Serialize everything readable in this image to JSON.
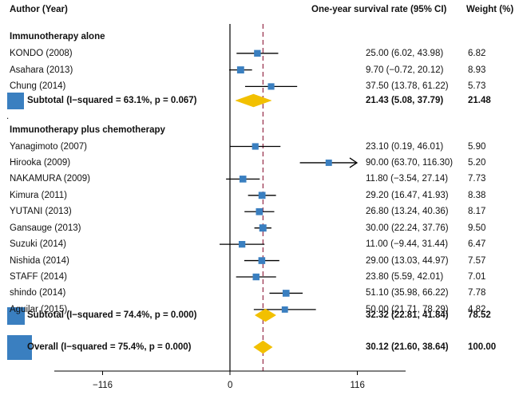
{
  "chart_data": {
    "type": "forest",
    "headers": {
      "study": "Author (Year)",
      "estimate": "One-year survival rate (95% CI)",
      "weight": "Weight (%)"
    },
    "subgroup_separator": ".",
    "subgroups": [
      {
        "title": "Immunotherapy alone",
        "studies": [
          {
            "label": "KONDO (2008)",
            "est": 25.0,
            "lo": 6.02,
            "hi": 43.98,
            "ci_text": "25.00 (6.02, 43.98)",
            "weight": 6.82,
            "weight_text": "6.82"
          },
          {
            "label": "Asahara (2013)",
            "est": 9.7,
            "lo": -0.72,
            "hi": 20.12,
            "ci_text": "9.70 (−0.72, 20.12)",
            "weight": 8.93,
            "weight_text": "8.93"
          },
          {
            "label": "Chung (2014)",
            "est": 37.5,
            "lo": 13.78,
            "hi": 61.22,
            "ci_text": "37.50 (13.78, 61.22)",
            "weight": 5.73,
            "weight_text": "5.73"
          }
        ],
        "subtotal": {
          "label": "Subtotal  (I−squared = 63.1%, p = 0.067)",
          "est": 21.43,
          "lo": 5.08,
          "hi": 37.79,
          "ci_text": "21.43 (5.08, 37.79)",
          "weight": 21.48,
          "weight_text": "21.48"
        }
      },
      {
        "title": "Immunotherapy plus chemotherapy",
        "studies": [
          {
            "label": "Yanagimoto (2007)",
            "est": 23.1,
            "lo": 0.19,
            "hi": 46.01,
            "ci_text": "23.10 (0.19, 46.01)",
            "weight": 5.9,
            "weight_text": "5.90"
          },
          {
            "label": "Hirooka (2009)",
            "est": 90.0,
            "lo": 63.7,
            "hi": 116.3,
            "ci_text": "90.00 (63.70, 116.30)",
            "weight": 5.2,
            "weight_text": "5.20",
            "arrow_right": true
          },
          {
            "label": "NAKAMURA (2009)",
            "est": 11.8,
            "lo": -3.54,
            "hi": 27.14,
            "ci_text": "11.80 (−3.54, 27.14)",
            "weight": 7.73,
            "weight_text": "7.73"
          },
          {
            "label": "Kimura (2011)",
            "est": 29.2,
            "lo": 16.47,
            "hi": 41.93,
            "ci_text": "29.20 (16.47, 41.93)",
            "weight": 8.38,
            "weight_text": "8.38"
          },
          {
            "label": "YUTANI (2013)",
            "est": 26.8,
            "lo": 13.24,
            "hi": 40.36,
            "ci_text": "26.80 (13.24, 40.36)",
            "weight": 8.17,
            "weight_text": "8.17"
          },
          {
            "label": "Gansauge (2013)",
            "est": 30.0,
            "lo": 22.24,
            "hi": 37.76,
            "ci_text": "30.00 (22.24, 37.76)",
            "weight": 9.5,
            "weight_text": "9.50"
          },
          {
            "label": "Suzuki (2014)",
            "est": 11.0,
            "lo": -9.44,
            "hi": 31.44,
            "ci_text": "11.00 (−9.44, 31.44)",
            "weight": 6.47,
            "weight_text": "6.47"
          },
          {
            "label": "Nishida (2014)",
            "est": 29.0,
            "lo": 13.03,
            "hi": 44.97,
            "ci_text": "29.00 (13.03, 44.97)",
            "weight": 7.57,
            "weight_text": "7.57"
          },
          {
            "label": "STAFF (2014)",
            "est": 23.8,
            "lo": 5.59,
            "hi": 42.01,
            "ci_text": "23.80 (5.59, 42.01)",
            "weight": 7.01,
            "weight_text": "7.01"
          },
          {
            "label": "shindo (2014)",
            "est": 51.1,
            "lo": 35.98,
            "hi": 66.22,
            "ci_text": "51.10 (35.98, 66.22)",
            "weight": 7.78,
            "weight_text": "7.78"
          },
          {
            "label": "Aguilar (2015)",
            "est": 50.0,
            "lo": 21.71,
            "hi": 78.29,
            "ci_text": "50.00 (21.71, 78.29)",
            "weight": 4.82,
            "weight_text": "4.82"
          }
        ],
        "subtotal": {
          "label": "Subtotal  (I−squared = 74.4%, p = 0.000)",
          "est": 32.32,
          "lo": 22.81,
          "hi": 41.84,
          "ci_text": "32.32 (22.81, 41.84)",
          "weight": 78.52,
          "weight_text": "78.52"
        }
      }
    ],
    "overall": {
      "label": "Overall  (I−squared = 75.4%, p = 0.000)",
      "est": 30.12,
      "lo": 21.6,
      "hi": 38.64,
      "ci_text": "30.12 (21.60, 38.64)",
      "weight": 100.0,
      "weight_text": "100.00"
    },
    "null_value": 0,
    "xlim": [
      -160,
      160
    ],
    "x_ticks": [
      -116,
      0,
      116
    ],
    "x_tick_labels": [
      "−116",
      "0",
      "116"
    ],
    "colors": {
      "marker": "#3a7fc0",
      "diamond": "#f2c000",
      "reference_line": "#a0415a",
      "line": "#000000"
    }
  }
}
